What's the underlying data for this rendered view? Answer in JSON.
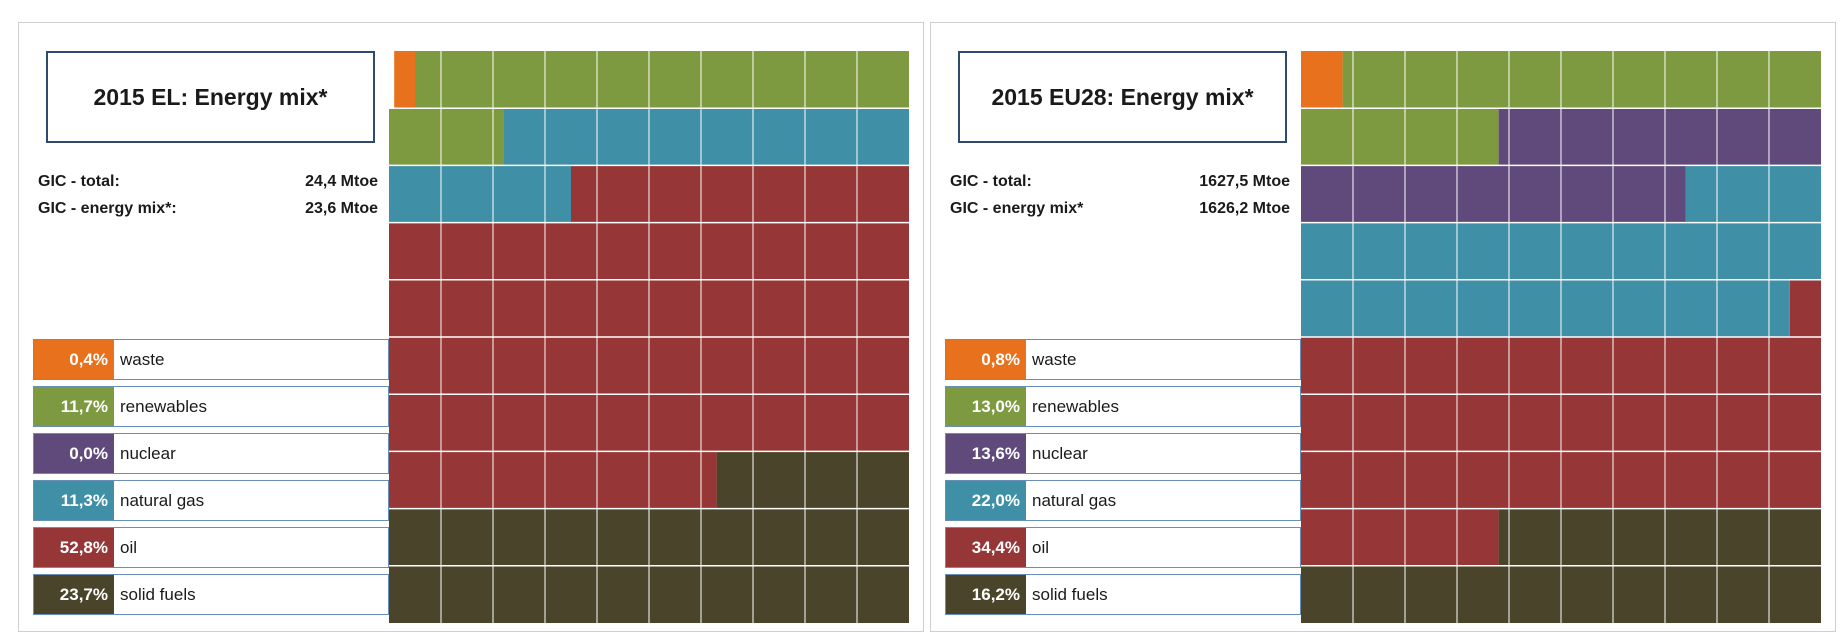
{
  "colors": {
    "waste": "#e8711e",
    "renewables": "#7d9a40",
    "nuclear": "#604a7b",
    "natural_gas": "#3f8fa6",
    "oil": "#963637",
    "solid_fuels": "#4a452a"
  },
  "chart_data": [
    {
      "type": "waffle",
      "title": "2015 EL: Energy mix*",
      "gic_total_label": "GIC - total:",
      "gic_total_value": "24,4 Mtoe",
      "gic_mix_label": "GIC - energy mix*:",
      "gic_mix_value": "23,6 Mtoe",
      "series": [
        {
          "key": "waste",
          "name": "waste",
          "pct_label": "0,4%",
          "value": 0.4,
          "color": "#e8711e"
        },
        {
          "key": "renewables",
          "name": "renewables",
          "pct_label": "11,7%",
          "value": 11.7,
          "color": "#7d9a40"
        },
        {
          "key": "nuclear",
          "name": "nuclear",
          "pct_label": "0,0%",
          "value": 0.0,
          "color": "#604a7b"
        },
        {
          "key": "natural_gas",
          "name": "natural gas",
          "pct_label": "11,3%",
          "value": 11.3,
          "color": "#3f8fa6"
        },
        {
          "key": "oil",
          "name": "oil",
          "pct_label": "52,8%",
          "value": 52.8,
          "color": "#963637"
        },
        {
          "key": "solid_fuels",
          "name": "solid fuels",
          "pct_label": "23,7%",
          "value": 23.7,
          "color": "#4a452a"
        }
      ]
    },
    {
      "type": "waffle",
      "title": "2015 EU28: Energy mix*",
      "gic_total_label": "GIC - total:",
      "gic_total_value": "1627,5 Mtoe",
      "gic_mix_label": "GIC - energy mix*",
      "gic_mix_value": "1626,2 Mtoe",
      "series": [
        {
          "key": "waste",
          "name": "waste",
          "pct_label": "0,8%",
          "value": 0.8,
          "color": "#e8711e"
        },
        {
          "key": "renewables",
          "name": "renewables",
          "pct_label": "13,0%",
          "value": 13.0,
          "color": "#7d9a40"
        },
        {
          "key": "nuclear",
          "name": "nuclear",
          "pct_label": "13,6%",
          "value": 13.6,
          "color": "#604a7b"
        },
        {
          "key": "natural_gas",
          "name": "natural gas",
          "pct_label": "22,0%",
          "value": 22.0,
          "color": "#3f8fa6"
        },
        {
          "key": "oil",
          "name": "oil",
          "pct_label": "34,4%",
          "value": 34.4,
          "color": "#963637"
        },
        {
          "key": "solid_fuels",
          "name": "solid fuels",
          "pct_label": "16,2%",
          "value": 16.2,
          "color": "#4a452a"
        }
      ]
    }
  ]
}
